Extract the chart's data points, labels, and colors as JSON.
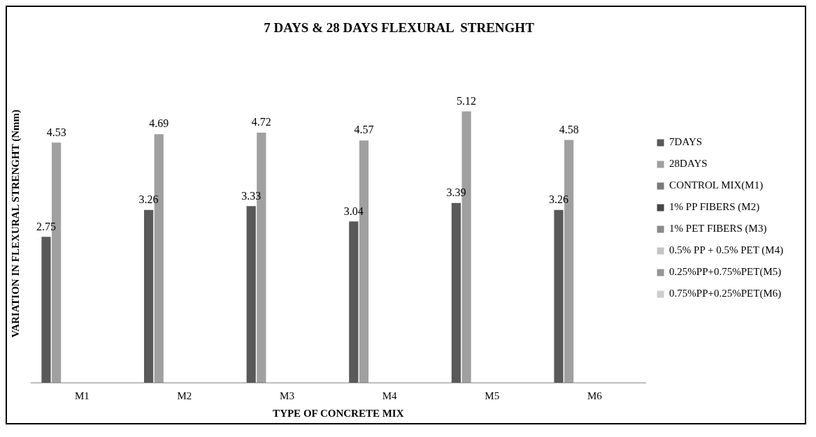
{
  "chart_data": {
    "type": "bar",
    "title": "7 DAYS & 28 DAYS FLEXURAL  STRENGHT",
    "xlabel": "TYPE OF CONCRETE MIX",
    "ylabel": "VARIATION IN FLEXURAL STRENGHT (Nmm)",
    "categories": [
      "M1",
      "M2",
      "M3",
      "M4",
      "M5",
      "M6"
    ],
    "series": [
      {
        "name": "7DAYS",
        "color": "#595959",
        "values": [
          2.75,
          3.26,
          3.33,
          3.04,
          3.39,
          3.26
        ]
      },
      {
        "name": "28DAYS",
        "color": "#a0a0a0",
        "values": [
          4.53,
          4.69,
          4.72,
          4.57,
          5.12,
          4.58
        ]
      },
      {
        "name": "CONTROL MIX(M1)",
        "color": "#7a7a7a",
        "values": [
          null,
          null,
          null,
          null,
          null,
          null
        ]
      },
      {
        "name": "1% PP FIBERS (M2)",
        "color": "#464646",
        "values": [
          null,
          null,
          null,
          null,
          null,
          null
        ]
      },
      {
        "name": "1% PET FIBERS (M3)",
        "color": "#898989",
        "values": [
          null,
          null,
          null,
          null,
          null,
          null
        ]
      },
      {
        "name": "0.5% PP + 0.5% PET (M4)",
        "color": "#c4c4c4",
        "values": [
          null,
          null,
          null,
          null,
          null,
          null
        ]
      },
      {
        "name": "0.25%PP+0.75%PET(M5)",
        "color": "#959595",
        "values": [
          null,
          null,
          null,
          null,
          null,
          null
        ]
      },
      {
        "name": "0.75%PP+0.25%PET(M6)",
        "color": "#cdcdcd",
        "values": [
          null,
          null,
          null,
          null,
          null,
          null
        ]
      }
    ],
    "data_labels": true,
    "legend": "right",
    "grid": false,
    "tick_labels": "x"
  }
}
